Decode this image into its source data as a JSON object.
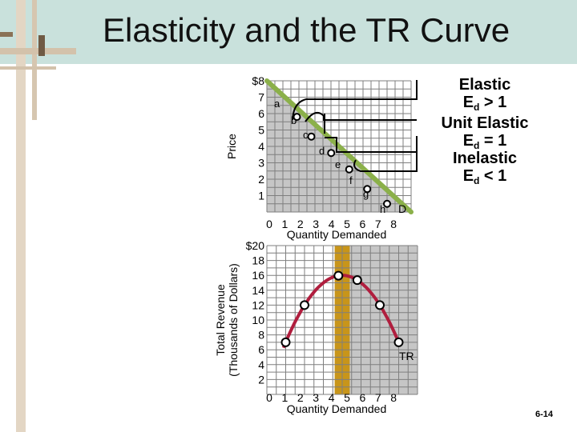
{
  "title": "Elasticity and the TR Curve",
  "slide_number": "6-14",
  "labels": {
    "elastic": [
      "Elastic",
      "E",
      "d",
      " > 1"
    ],
    "unit": [
      "Unit Elastic",
      "E",
      "d",
      " = 1"
    ],
    "inelastic": [
      "Inelastic",
      "E",
      "d",
      " < 1"
    ],
    "demand": "D",
    "tr": "TR"
  },
  "colors": {
    "demand": "#8bb04a",
    "tr": "#b01e3e",
    "grid": "#7f7f7f",
    "elastic_fill": "#ffffff",
    "inelastic_fill": "#c6c6c6",
    "unit_fill": "#c8951a"
  },
  "chart_data": [
    {
      "type": "line",
      "ylabel": "Price",
      "xlabel": "Quantity Demanded",
      "xticks": [
        "0",
        "1",
        "2",
        "3",
        "4",
        "5",
        "6",
        "7",
        "8"
      ],
      "yticks": [
        "$8",
        "7",
        "6",
        "5",
        "4",
        "3",
        "2",
        "1"
      ],
      "xlim": [
        0,
        8
      ],
      "ylim": [
        0,
        8
      ],
      "series": [
        {
          "name": "D",
          "points": [
            {
              "label": "a",
              "x": 0,
              "y": 8
            },
            {
              "label": "a",
              "x": 1,
              "y": 7
            },
            {
              "label": "b",
              "x": 2,
              "y": 6
            },
            {
              "label": "c",
              "x": 3,
              "y": 5
            },
            {
              "label": "d",
              "x": 4,
              "y": 4
            },
            {
              "label": "e",
              "x": 5,
              "y": 3
            },
            {
              "label": "f",
              "x": 6,
              "y": 2
            },
            {
              "label": "g",
              "x": 7,
              "y": 1
            },
            {
              "label": "h",
              "x": 8,
              "y": 0
            }
          ]
        }
      ]
    },
    {
      "type": "line",
      "ylabel": "Total Revenue (Thousands of Dollars)",
      "ylabel_lines": [
        "Total Revenue",
        "(Thousands of Dollars)"
      ],
      "xlabel": "Quantity Demanded",
      "xticks": [
        "0",
        "1",
        "2",
        "3",
        "4",
        "5",
        "6",
        "7",
        "8"
      ],
      "yticks": [
        "$20",
        "18",
        "16",
        "14",
        "12",
        "10",
        "8",
        "6",
        "4",
        "2"
      ],
      "xlim": [
        0,
        8
      ],
      "ylim": [
        0,
        20
      ],
      "series": [
        {
          "name": "TR",
          "points": [
            {
              "x": 1,
              "y": 7
            },
            {
              "x": 2,
              "y": 12
            },
            {
              "x": 3,
              "y": 15
            },
            {
              "x": 4,
              "y": 16
            },
            {
              "x": 5,
              "y": 15
            },
            {
              "x": 6,
              "y": 12
            },
            {
              "x": 7,
              "y": 7
            }
          ]
        }
      ]
    }
  ]
}
